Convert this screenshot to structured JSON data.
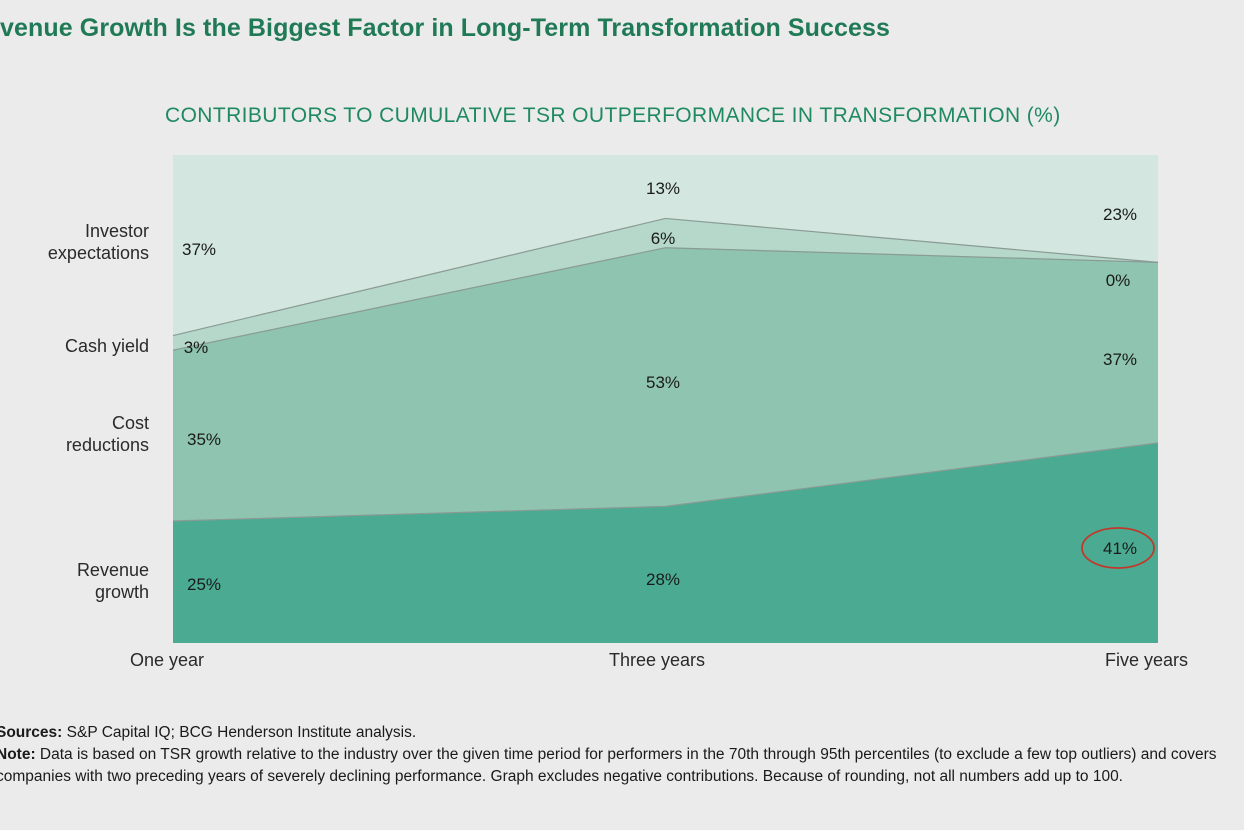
{
  "headline": "evenue Growth Is the Biggest Factor in Long-Term Transformation Success",
  "footnotes": {
    "sources_label": "Sources:",
    "sources_text": "S&P Capital IQ; BCG Henderson Institute analysis.",
    "note_label": "Note:",
    "note_text": "Data is based on TSR growth relative to the industry over the given time period for performers in the 70th through 95th percentiles (to exclude a few top outliers) and covers companies with two preceding years of severely declining performance. Graph excludes negative contributions. Because of rounding, not all numbers add up to 100."
  },
  "colors": {
    "revenue": "#4aab92",
    "cost": "#8ec4b0",
    "cash": "#b5d8cb",
    "investor": "#d3e6df",
    "highlight": "#c0392b",
    "title": "#1f8a62"
  },
  "chart_data": {
    "type": "area",
    "stacked": true,
    "title": "CONTRIBUTORS TO CUMULATIVE TSR OUTPERFORMANCE IN TRANSFORMATION (%)",
    "x": [
      "One year",
      "Three years",
      "Five years"
    ],
    "ylim": [
      0,
      100
    ],
    "grid": false,
    "series": [
      {
        "name": "Revenue growth",
        "label_lines": [
          "Revenue",
          "growth"
        ],
        "values": [
          25,
          28,
          41
        ],
        "labels": [
          "25%",
          "28%",
          "41%"
        ]
      },
      {
        "name": "Cost reductions",
        "label_lines": [
          "Cost",
          "reductions"
        ],
        "values": [
          35,
          53,
          37
        ],
        "labels": [
          "35%",
          "53%",
          "37%"
        ]
      },
      {
        "name": "Cash yield",
        "label_lines": [
          "Cash yield"
        ],
        "values": [
          3,
          6,
          0
        ],
        "labels": [
          "3%",
          "6%",
          "0%"
        ]
      },
      {
        "name": "Investor expectations",
        "label_lines": [
          "Investor",
          "expectations"
        ],
        "values": [
          37,
          13,
          23
        ],
        "labels": [
          "37%",
          "13%",
          "23%"
        ]
      }
    ],
    "highlight": {
      "series": "Revenue growth",
      "x": "Five years"
    }
  }
}
